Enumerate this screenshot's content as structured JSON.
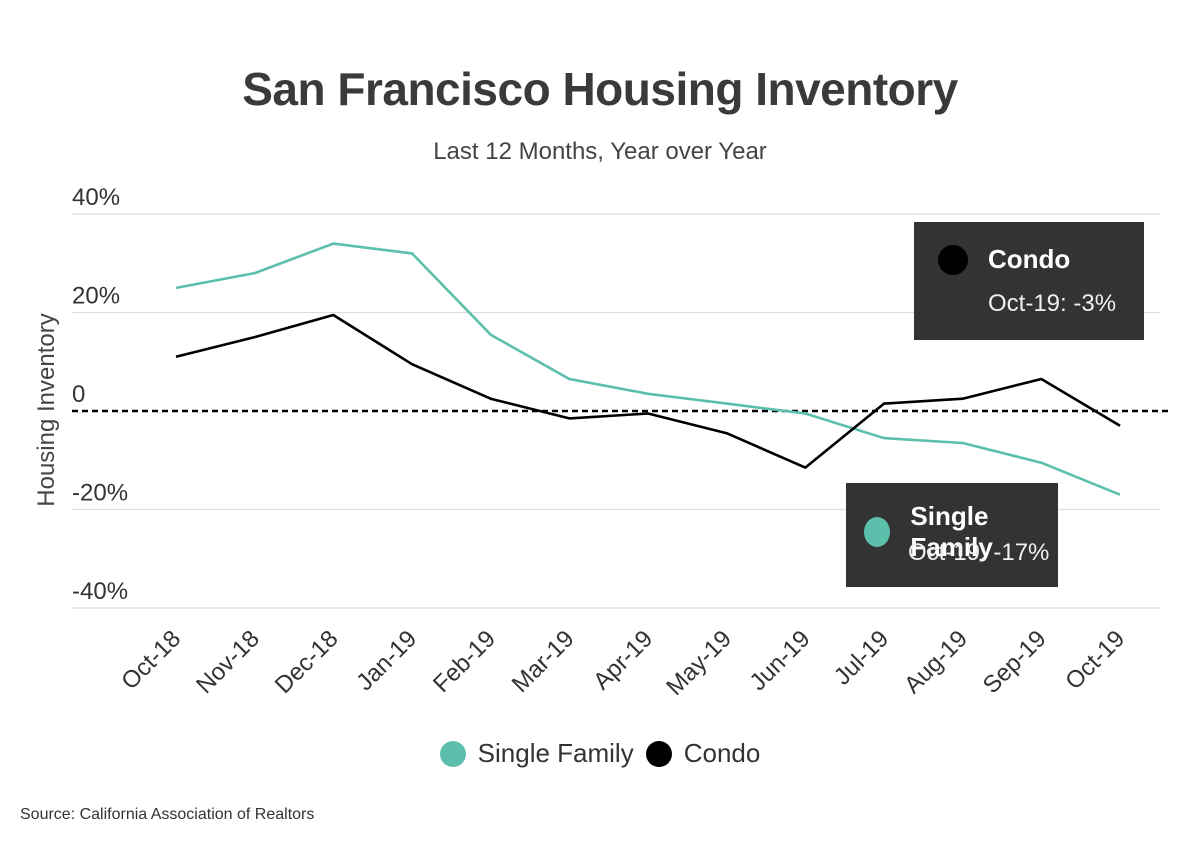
{
  "title": "San Francisco Housing Inventory",
  "subtitle": "Last 12 Months, Year over Year",
  "source": "Source:  California Association of Realtors",
  "colors": {
    "single_family": "#5bbfac",
    "condo": "#000000",
    "callout_bg": "#333333",
    "grid": "#dddddd"
  },
  "callouts": {
    "condo": {
      "name": "Condo",
      "value": "Oct-19: -3%"
    },
    "single_family": {
      "name": "Single Family",
      "value": "Oct-19: -17%"
    }
  },
  "legend": {
    "items": [
      "Single Family",
      "Condo"
    ]
  },
  "chart_data": {
    "type": "line",
    "title": "San Francisco Housing Inventory",
    "subtitle": "Last 12 Months, Year over Year",
    "ylabel": "Housing Inventory",
    "xlabel": "",
    "categories": [
      "Oct-18",
      "Nov-18",
      "Dec-18",
      "Jan-19",
      "Feb-19",
      "Mar-19",
      "Apr-19",
      "May-19",
      "Jun-19",
      "Jul-19",
      "Aug-19",
      "Sep-19",
      "Oct-19"
    ],
    "ylim": [
      -40,
      40
    ],
    "y_ticks": [
      40,
      20,
      0,
      -20,
      -40
    ],
    "y_tick_labels": [
      "40%",
      "20%",
      "0",
      "-20%",
      "-40%"
    ],
    "grid": true,
    "zero_line": "dashed",
    "legend_position": "bottom",
    "series": [
      {
        "name": "Single Family",
        "values": [
          25,
          28,
          34,
          32,
          15.5,
          6.5,
          3.5,
          1.5,
          -0.5,
          -5.5,
          -6.5,
          -10.5,
          -17
        ]
      },
      {
        "name": "Condo",
        "values": [
          11,
          15,
          19.5,
          9.5,
          2.5,
          -1.5,
          -0.5,
          -4.5,
          -11.5,
          1.5,
          2.5,
          6.5,
          -3
        ]
      }
    ]
  }
}
